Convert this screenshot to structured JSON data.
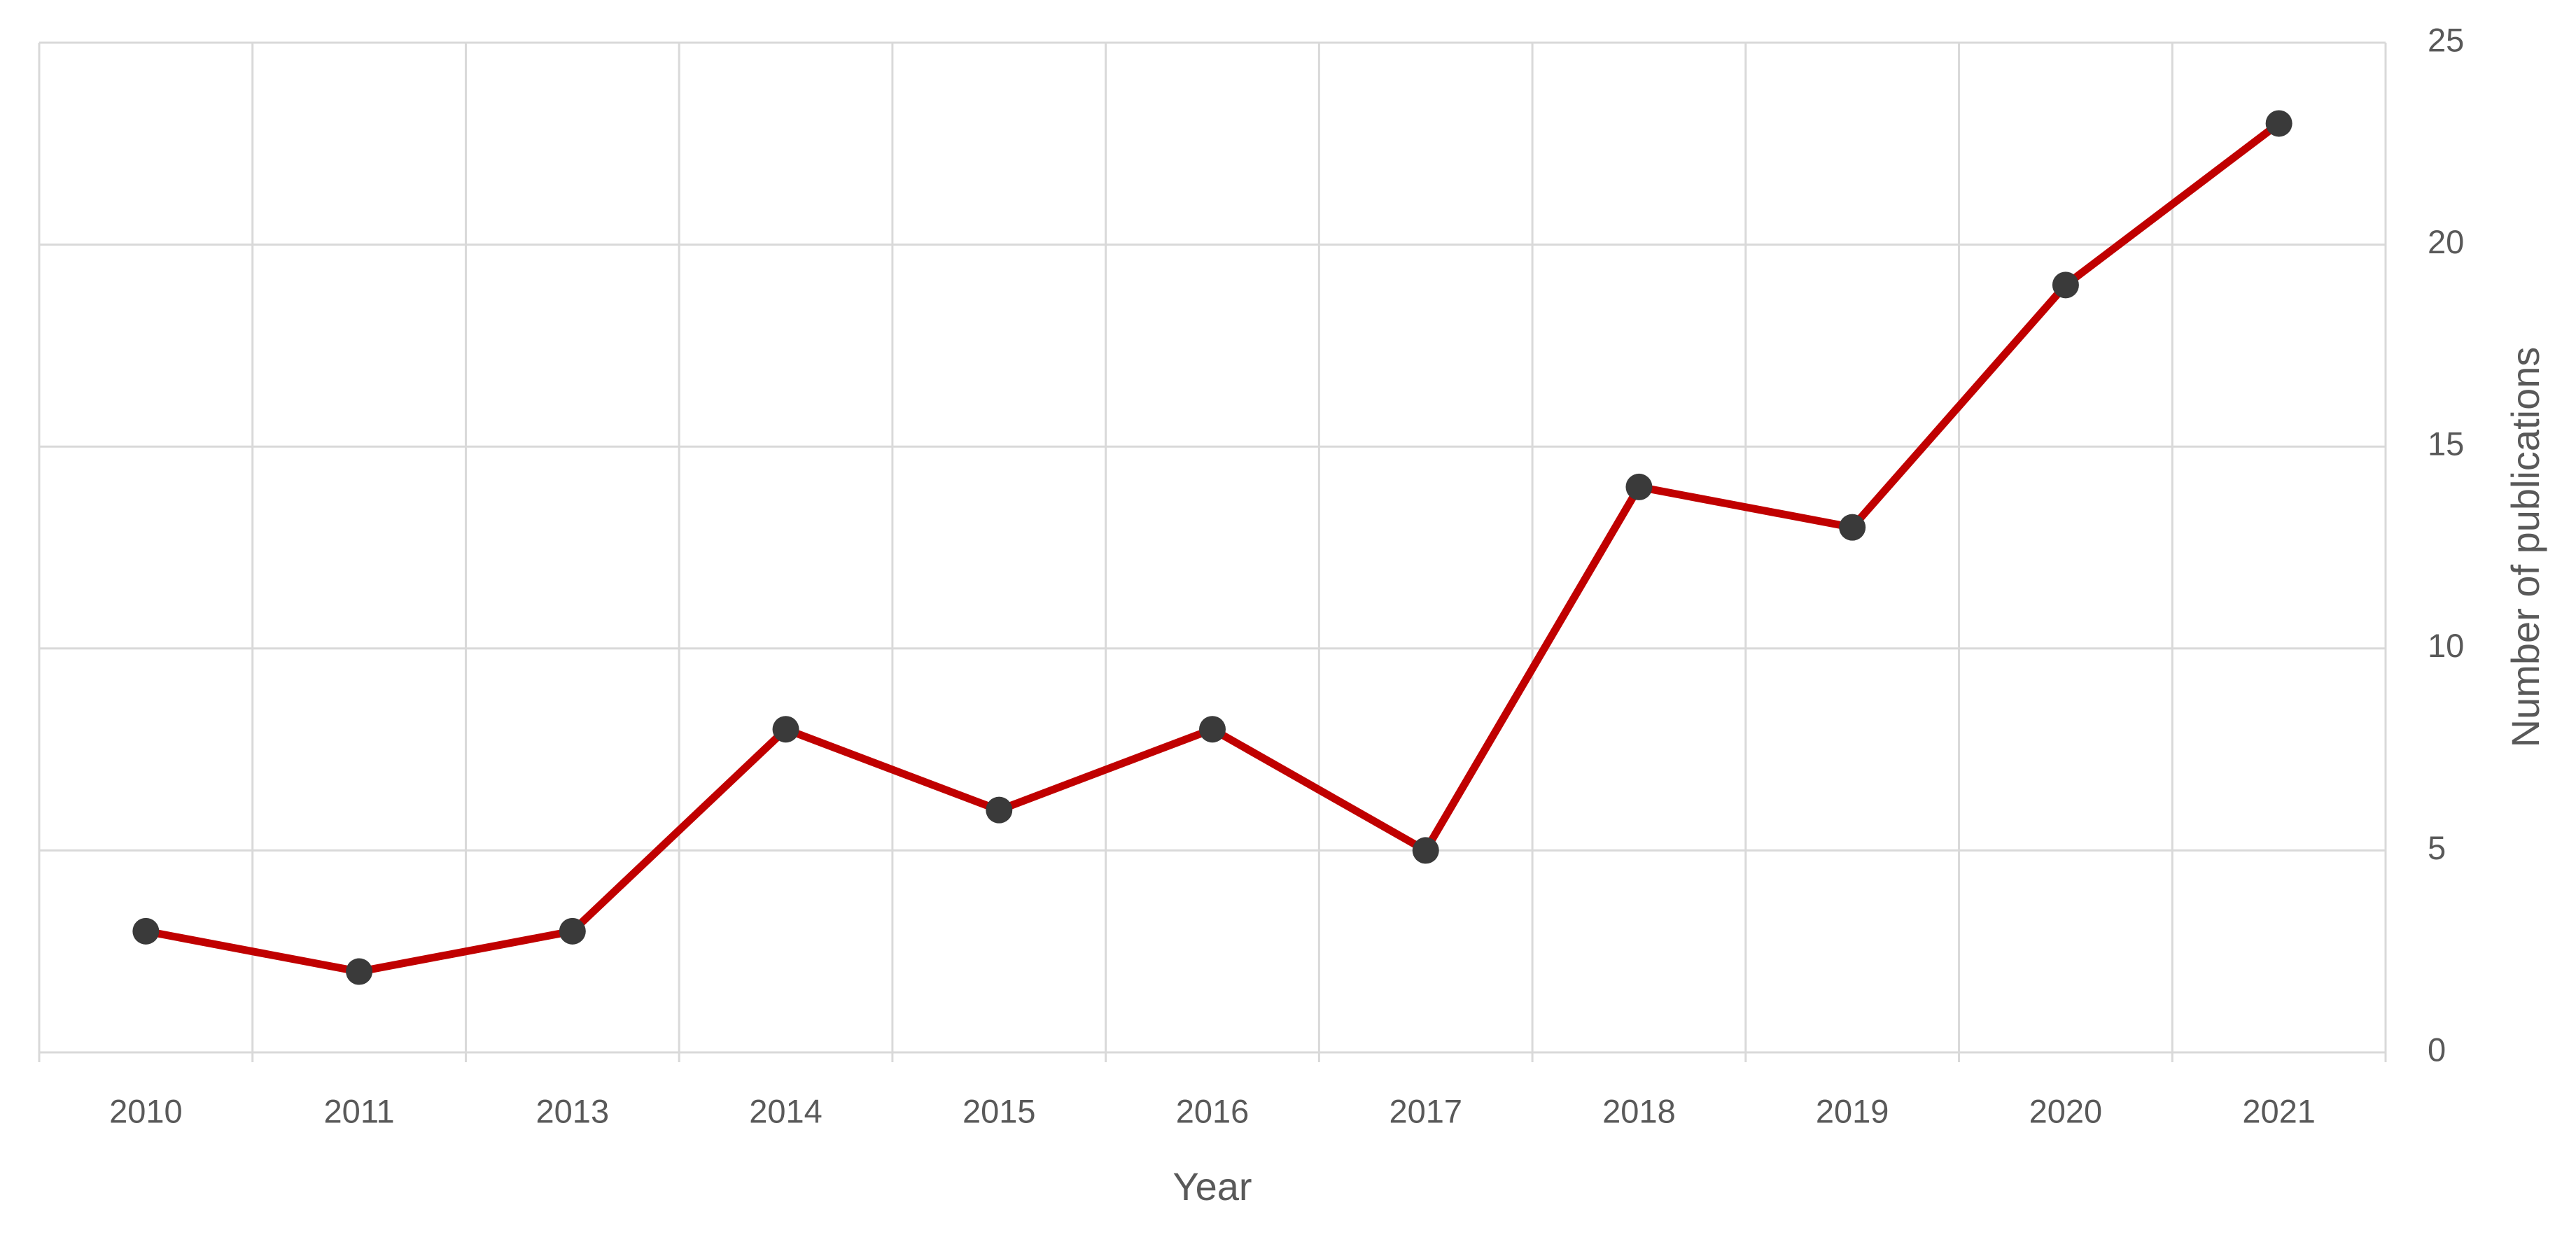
{
  "chart_data": {
    "type": "line",
    "x_label": "Year",
    "y_label": "Number of publications",
    "categories": [
      "2010",
      "2011",
      "2013",
      "2014",
      "2015",
      "2016",
      "2017",
      "2018",
      "2019",
      "2020",
      "2021"
    ],
    "series": [
      {
        "name": "Number of publications",
        "color": "#c00000",
        "marker_color": "#3a3a3a",
        "values": [
          3,
          2,
          3,
          8,
          6,
          8,
          5,
          14,
          13,
          19,
          23
        ]
      }
    ],
    "ylim": [
      0,
      25
    ],
    "yticks": [
      0,
      5,
      10,
      15,
      20,
      25
    ],
    "y_axis_side": "right",
    "grid": true,
    "legend": false
  }
}
